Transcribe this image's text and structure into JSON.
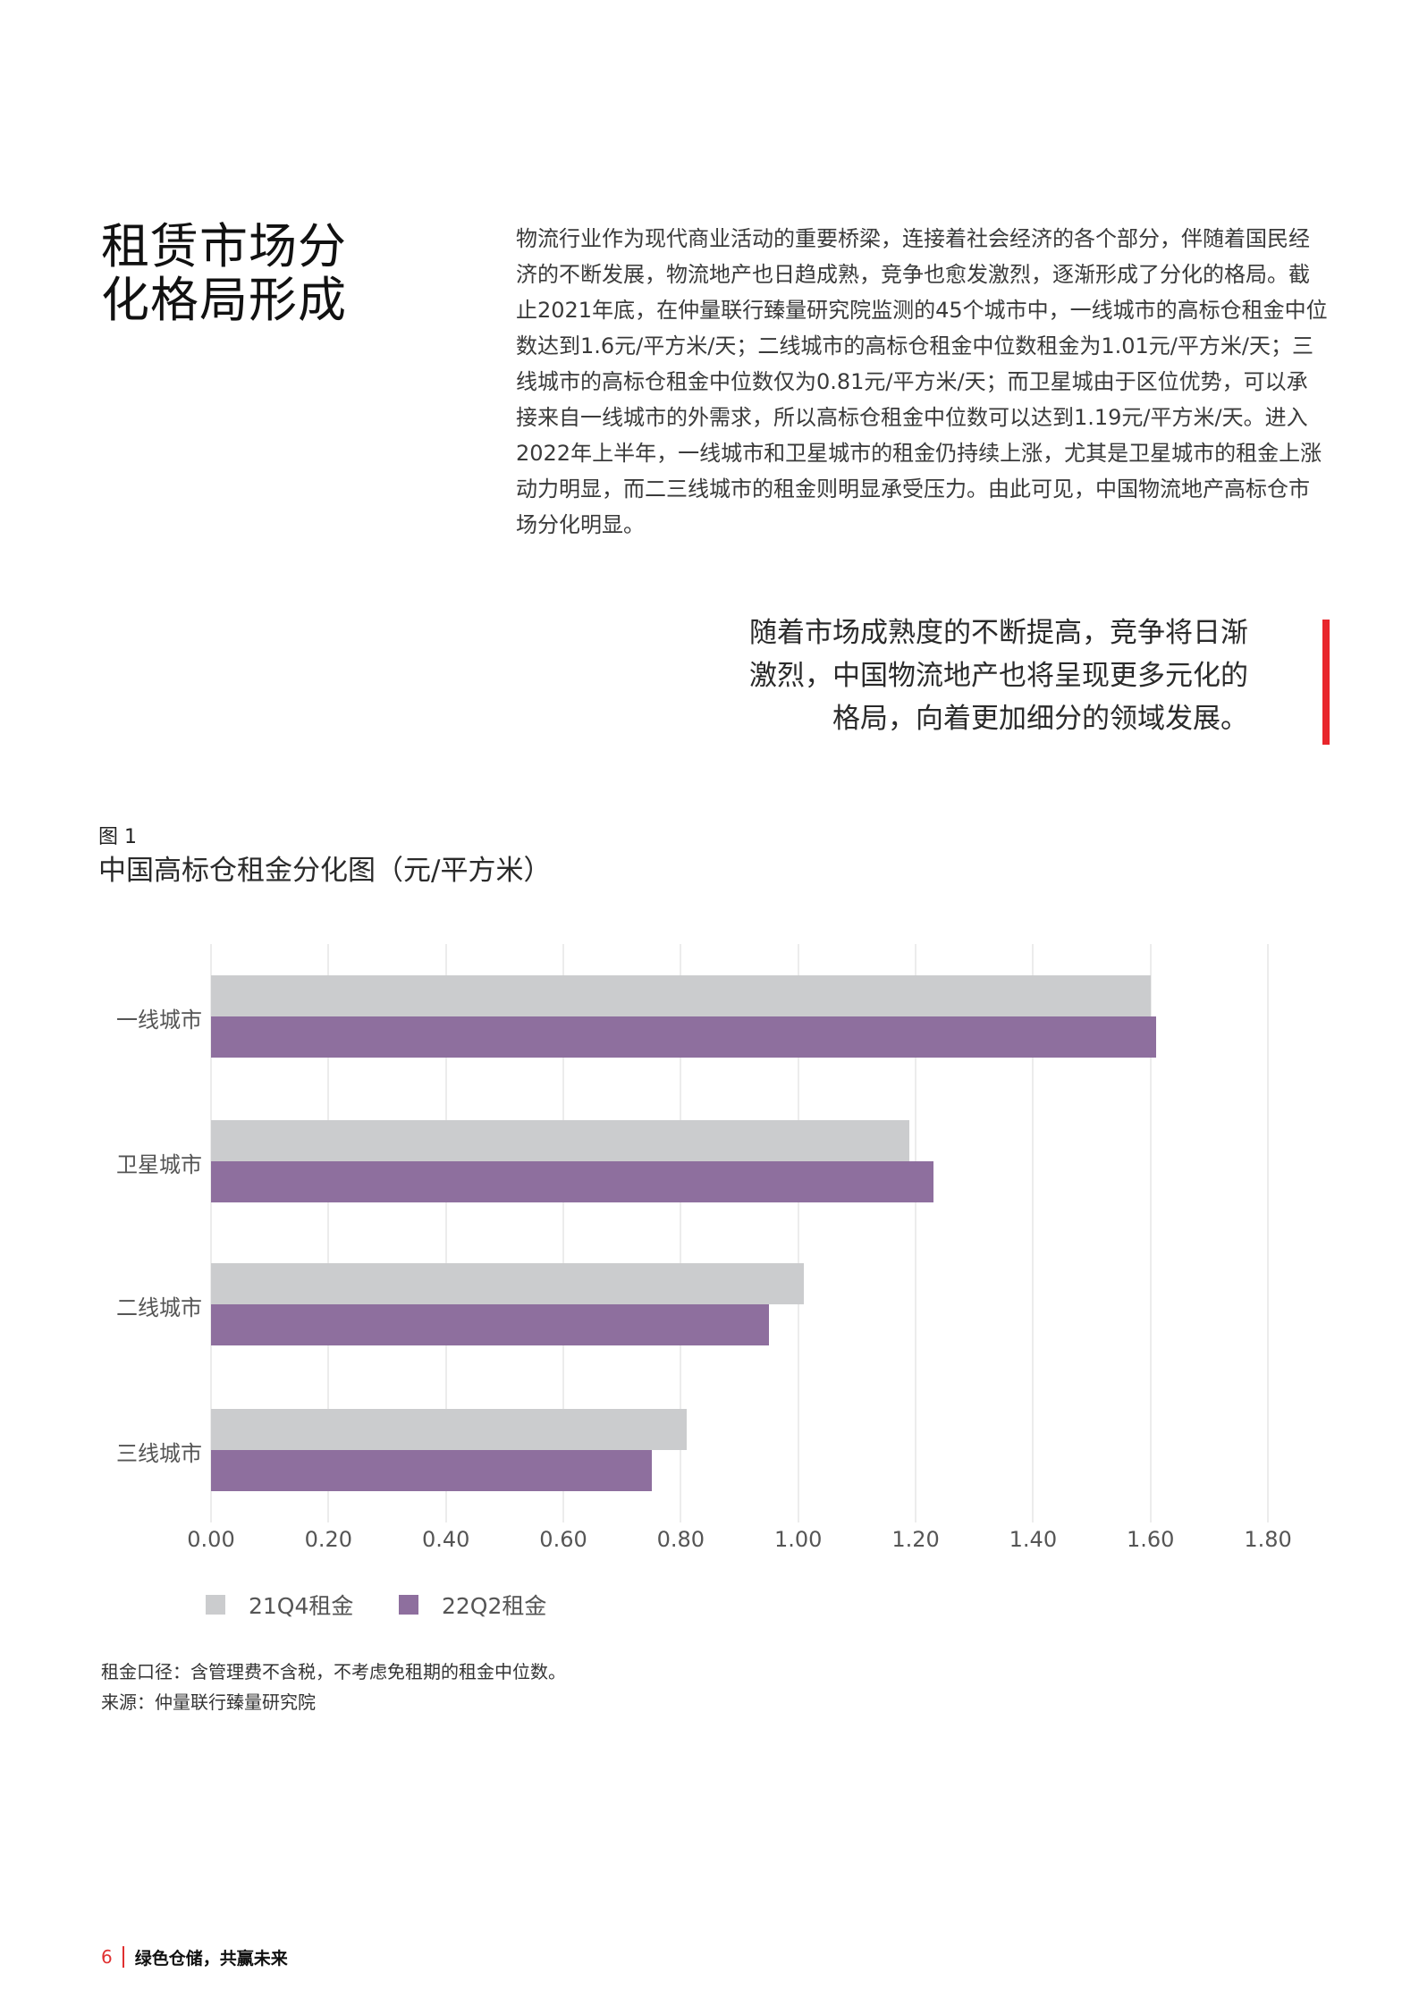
{
  "heading": {
    "lines": [
      "租赁市场分",
      "化格局形成"
    ]
  },
  "paragraph": {
    "lines": [
      "物流行业作为现代商业活动的重要桥梁，连接着社会经济的各个部分，伴随着国民经",
      "济的不断发展，物流地产也日趋成熟，竞争也愈发激烈，逐渐形成了分化的格局。截",
      "止2021年底，在仲量联行臻量研究院监测的45个城市中，一线城市的高标仓租金中位",
      "数达到1.6元/平方米/天；二线城市的高标仓租金中位数租金为1.01元/平方米/天；三",
      "线城市的高标仓租金中位数仅为0.81元/平方米/天；而卫星城由于区位优势，可以承",
      "接来自一线城市的外需求，所以高标仓租金中位数可以达到1.19元/平方米/天。进入",
      "2022年上半年，一线城市和卫星城市的租金仍持续上涨，尤其是卫星城市的租金上涨",
      "动力明显，而二三线城市的租金则明显承受压力。由此可见，中国物流地产高标仓市",
      "场分化明显。"
    ]
  },
  "pull_quote": {
    "lines": [
      "随着市场成熟度的不断提高，竞争将日渐",
      "激烈，中国物流地产也将呈现更多元化的",
      "格局，向着更加细分的领域发展。"
    ],
    "accent_color": "#E8262C"
  },
  "figure": {
    "label": "图 1",
    "title": "中国高标仓租金分化图（元/平方米）"
  },
  "chart_data": {
    "type": "bar",
    "orientation": "horizontal",
    "title": "中国高标仓租金分化图（元/平方米）",
    "xlabel": "",
    "ylabel": "",
    "categories": [
      "一线城市",
      "卫星城市",
      "二线城市",
      "三线城市"
    ],
    "series": [
      {
        "name": "21Q4租金",
        "color": "#CBCCCE",
        "values": [
          1.6,
          1.19,
          1.01,
          0.81
        ]
      },
      {
        "name": "22Q2租金",
        "color": "#8E6F9E",
        "values": [
          1.61,
          1.23,
          0.95,
          0.75
        ]
      }
    ],
    "xlim": [
      0,
      1.8
    ],
    "x_ticks": [
      "0.00",
      "0.20",
      "0.40",
      "0.60",
      "0.80",
      "1.00",
      "1.20",
      "1.40",
      "1.60",
      "1.80"
    ],
    "grid": "vertical",
    "legend_position": "bottom-left"
  },
  "notes": {
    "caliber": "租金口径：含管理费不含税，不考虑免租期的租金中位数。",
    "source": "来源：仲量联行臻量研究院"
  },
  "footer": {
    "page_number": "6",
    "slogan": "绿色仓储，共赢未来"
  }
}
